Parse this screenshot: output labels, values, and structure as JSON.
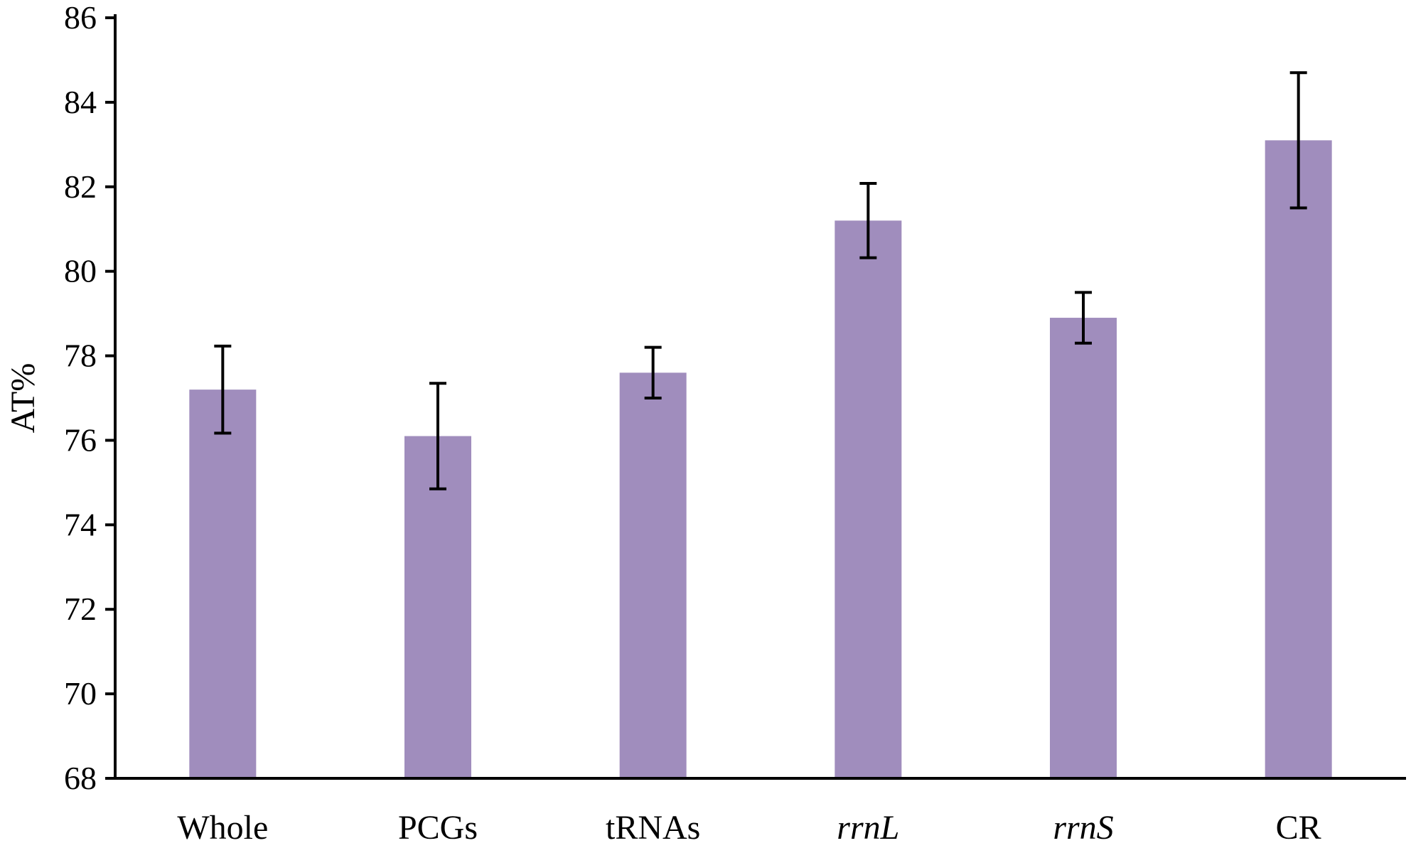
{
  "chart_data": {
    "type": "bar",
    "title": "",
    "xlabel": "",
    "ylabel": "AT%",
    "ylim": [
      68,
      86
    ],
    "yticks": [
      68,
      70,
      72,
      74,
      76,
      78,
      80,
      82,
      84,
      86
    ],
    "categories": [
      "Whole",
      "PCGs",
      "tRNAs",
      "rrnL",
      "rrnS",
      "CR"
    ],
    "italic_categories": [
      "rrnL",
      "rrnS"
    ],
    "values": [
      77.2,
      76.1,
      77.6,
      81.2,
      78.9,
      83.1
    ],
    "error": [
      1.03,
      1.25,
      0.6,
      0.88,
      0.6,
      1.6
    ],
    "grid": false,
    "legend": "none",
    "bar_color": "#a08dbd",
    "axis_color": "#000000",
    "errorbar_color": "#000000"
  }
}
